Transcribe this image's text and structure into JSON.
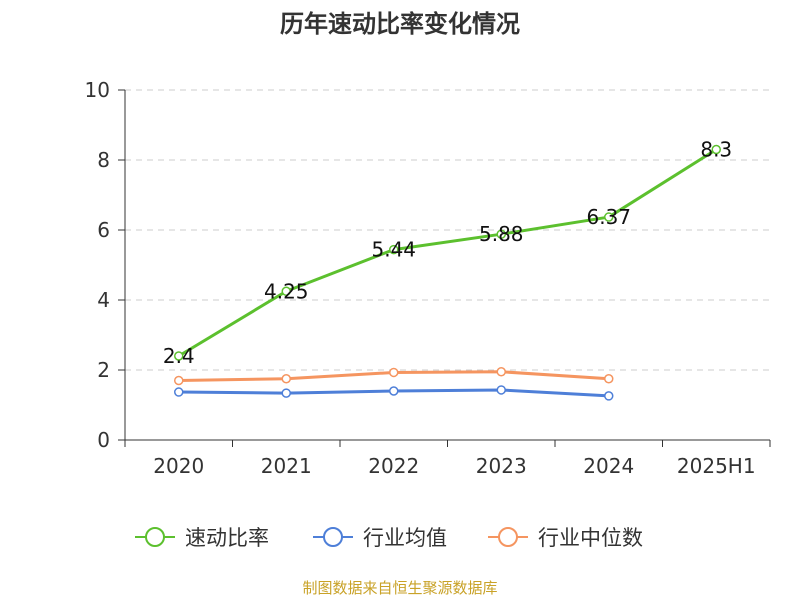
{
  "chart_data": {
    "type": "line",
    "title": "历年速动比率变化情况",
    "categories": [
      "2020",
      "2021",
      "2022",
      "2023",
      "2024",
      "2025H1"
    ],
    "ylim": [
      0,
      10
    ],
    "yticks": [
      0,
      2,
      4,
      6,
      8,
      10
    ],
    "grid": true,
    "legend_position": "bottom",
    "series": [
      {
        "name": "速动比率",
        "color": "#5cc02e",
        "values": [
          2.4,
          4.25,
          5.44,
          5.88,
          6.37,
          8.3
        ],
        "labels": [
          "2.4",
          "4.25",
          "5.44",
          "5.88",
          "6.37",
          "8.3"
        ]
      },
      {
        "name": "行业均值",
        "color": "#4e7fd8",
        "values": [
          1.37,
          1.34,
          1.4,
          1.43,
          1.26,
          null
        ]
      },
      {
        "name": "行业中位数",
        "color": "#f59560",
        "values": [
          1.7,
          1.75,
          1.93,
          1.95,
          1.75,
          null
        ]
      }
    ]
  },
  "source_note": "制图数据来自恒生聚源数据库"
}
